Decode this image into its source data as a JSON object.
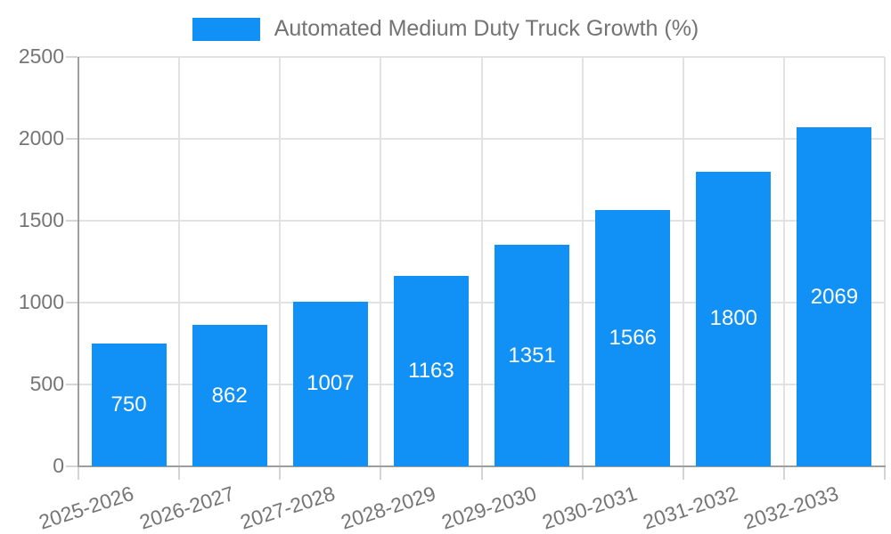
{
  "legend": {
    "label": "Automated Medium Duty Truck Growth (%)"
  },
  "colors": {
    "bar": "#1190F5",
    "grid": "#e2e2e2",
    "axis": "#9e9e9e",
    "tick": "#d4d4d4",
    "axis_text": "#757575",
    "value_text": "#ffffff",
    "background": "#ffffff"
  },
  "chart_data": {
    "type": "bar",
    "title": "Automated Medium Duty Truck Growth (%)",
    "categories": [
      "2025-2026",
      "2026-2027",
      "2027-2028",
      "2028-2029",
      "2029-2030",
      "2030-2031",
      "2031-2032",
      "2032-2033"
    ],
    "values": [
      750,
      862,
      1007,
      1163,
      1351,
      1566,
      1800,
      2069
    ],
    "xlabel": "",
    "ylabel": "",
    "ylim": [
      0,
      2500
    ],
    "yticks": [
      0,
      500,
      1000,
      1500,
      2000,
      2500
    ],
    "grid": true,
    "legend_position": "top",
    "value_labels": "inside-center"
  }
}
